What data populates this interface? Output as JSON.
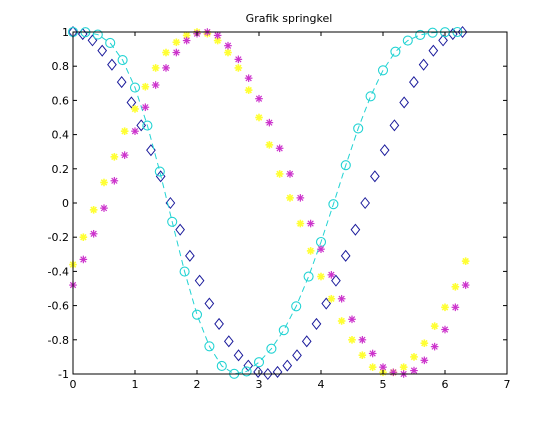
{
  "chart_data": {
    "type": "scatter",
    "title": "Grafik springkel",
    "xlabel": "",
    "ylabel": "",
    "xlim": [
      0,
      7
    ],
    "ylim": [
      -1,
      1
    ],
    "xticks": [
      0,
      1,
      2,
      3,
      4,
      5,
      6,
      7
    ],
    "yticks": [
      -1,
      -0.8,
      -0.6,
      -0.4,
      -0.2,
      0,
      0.2,
      0.4,
      0.6,
      0.8,
      1
    ],
    "xtick_labels": [
      "0",
      "1",
      "2",
      "3",
      "4",
      "5",
      "6",
      "7"
    ],
    "ytick_labels": [
      "-1",
      "-0.8",
      "-0.6",
      "-0.4",
      "-0.2",
      "0",
      "0.2",
      "0.4",
      "0.6",
      "0.8",
      "1"
    ],
    "grid": false,
    "legend": "none",
    "series": [
      {
        "marker": "diamond",
        "line": "none",
        "color": "#1c1c9c",
        "x": [
          0.0,
          0.157,
          0.314,
          0.471,
          0.628,
          0.785,
          0.942,
          1.1,
          1.257,
          1.414,
          1.571,
          1.728,
          1.885,
          2.042,
          2.199,
          2.356,
          2.513,
          2.67,
          2.827,
          2.985,
          3.142,
          3.299,
          3.456,
          3.613,
          3.77,
          3.927,
          4.084,
          4.241,
          4.398,
          4.555,
          4.712,
          4.869,
          5.027,
          5.184,
          5.341,
          5.498,
          5.655,
          5.812,
          5.969,
          6.126,
          6.283
        ],
        "y": [
          1.0,
          0.988,
          0.951,
          0.891,
          0.809,
          0.707,
          0.588,
          0.454,
          0.309,
          0.156,
          0.0,
          -0.156,
          -0.309,
          -0.454,
          -0.588,
          -0.707,
          -0.809,
          -0.891,
          -0.951,
          -0.988,
          -1.0,
          -0.988,
          -0.951,
          -0.891,
          -0.809,
          -0.707,
          -0.588,
          -0.454,
          -0.309,
          -0.156,
          0.0,
          0.156,
          0.309,
          0.454,
          0.588,
          0.707,
          0.809,
          0.891,
          0.951,
          0.988,
          1.0
        ]
      },
      {
        "marker": "circle",
        "line": "dashed",
        "color": "#22d3d3",
        "x": [
          0.0,
          0.2,
          0.4,
          0.6,
          0.8,
          1.0,
          1.2,
          1.4,
          1.6,
          1.8,
          2.0,
          2.2,
          2.4,
          2.6,
          2.8,
          3.0,
          3.2,
          3.4,
          3.6,
          3.8,
          4.0,
          4.2,
          4.4,
          4.6,
          4.8,
          5.0,
          5.2,
          5.4,
          5.6,
          5.8,
          6.0,
          6.2
        ],
        "y": [
          1.0,
          0.999,
          0.985,
          0.936,
          0.836,
          0.675,
          0.453,
          0.184,
          -0.11,
          -0.401,
          -0.653,
          -0.838,
          -0.953,
          -0.999,
          -0.985,
          -0.931,
          -0.852,
          -0.744,
          -0.604,
          -0.43,
          -0.228,
          -0.007,
          0.221,
          0.436,
          0.624,
          0.776,
          0.885,
          0.95,
          0.983,
          0.996,
          0.999,
          1.0
        ]
      },
      {
        "marker": "star",
        "line": "none",
        "color": "#ffff33",
        "x": [
          0.0,
          0.167,
          0.333,
          0.5,
          0.667,
          0.833,
          1.0,
          1.167,
          1.333,
          1.5,
          1.667,
          1.833,
          2.0,
          2.167,
          2.333,
          2.5,
          2.667,
          2.833,
          3.0,
          3.167,
          3.333,
          3.5,
          3.667,
          3.833,
          4.0,
          4.167,
          4.333,
          4.5,
          4.667,
          4.833,
          5.0,
          5.167,
          5.333,
          5.5,
          5.667,
          5.833,
          6.0,
          6.167,
          6.333
        ],
        "y": [
          -0.36,
          -0.2,
          -0.04,
          0.12,
          0.27,
          0.42,
          0.55,
          0.68,
          0.79,
          0.88,
          0.94,
          0.98,
          1.0,
          0.99,
          0.95,
          0.88,
          0.79,
          0.66,
          0.5,
          0.34,
          0.17,
          0.03,
          -0.12,
          -0.28,
          -0.43,
          -0.56,
          -0.69,
          -0.8,
          -0.89,
          -0.96,
          -0.99,
          -0.99,
          -0.96,
          -0.9,
          -0.82,
          -0.72,
          -0.61,
          -0.49,
          -0.34
        ]
      },
      {
        "marker": "asterisk",
        "line": "none",
        "color": "#cc33cc",
        "x": [
          0.0,
          0.167,
          0.333,
          0.5,
          0.667,
          0.833,
          1.0,
          1.167,
          1.333,
          1.5,
          1.667,
          1.833,
          2.0,
          2.167,
          2.333,
          2.5,
          2.667,
          2.833,
          3.0,
          3.167,
          3.333,
          3.5,
          3.667,
          3.833,
          4.0,
          4.167,
          4.333,
          4.5,
          4.667,
          4.833,
          5.0,
          5.167,
          5.333,
          5.5,
          5.667,
          5.833,
          6.0,
          6.167,
          6.333
        ],
        "y": [
          -0.48,
          -0.33,
          -0.18,
          -0.03,
          0.13,
          0.28,
          0.42,
          0.56,
          0.69,
          0.79,
          0.88,
          0.95,
          0.99,
          1.0,
          0.98,
          0.92,
          0.84,
          0.73,
          0.61,
          0.47,
          0.32,
          0.17,
          0.03,
          -0.12,
          -0.27,
          -0.42,
          -0.56,
          -0.68,
          -0.8,
          -0.88,
          -0.96,
          -0.99,
          -1.0,
          -0.98,
          -0.92,
          -0.84,
          -0.74,
          -0.61,
          -0.48
        ]
      }
    ]
  }
}
